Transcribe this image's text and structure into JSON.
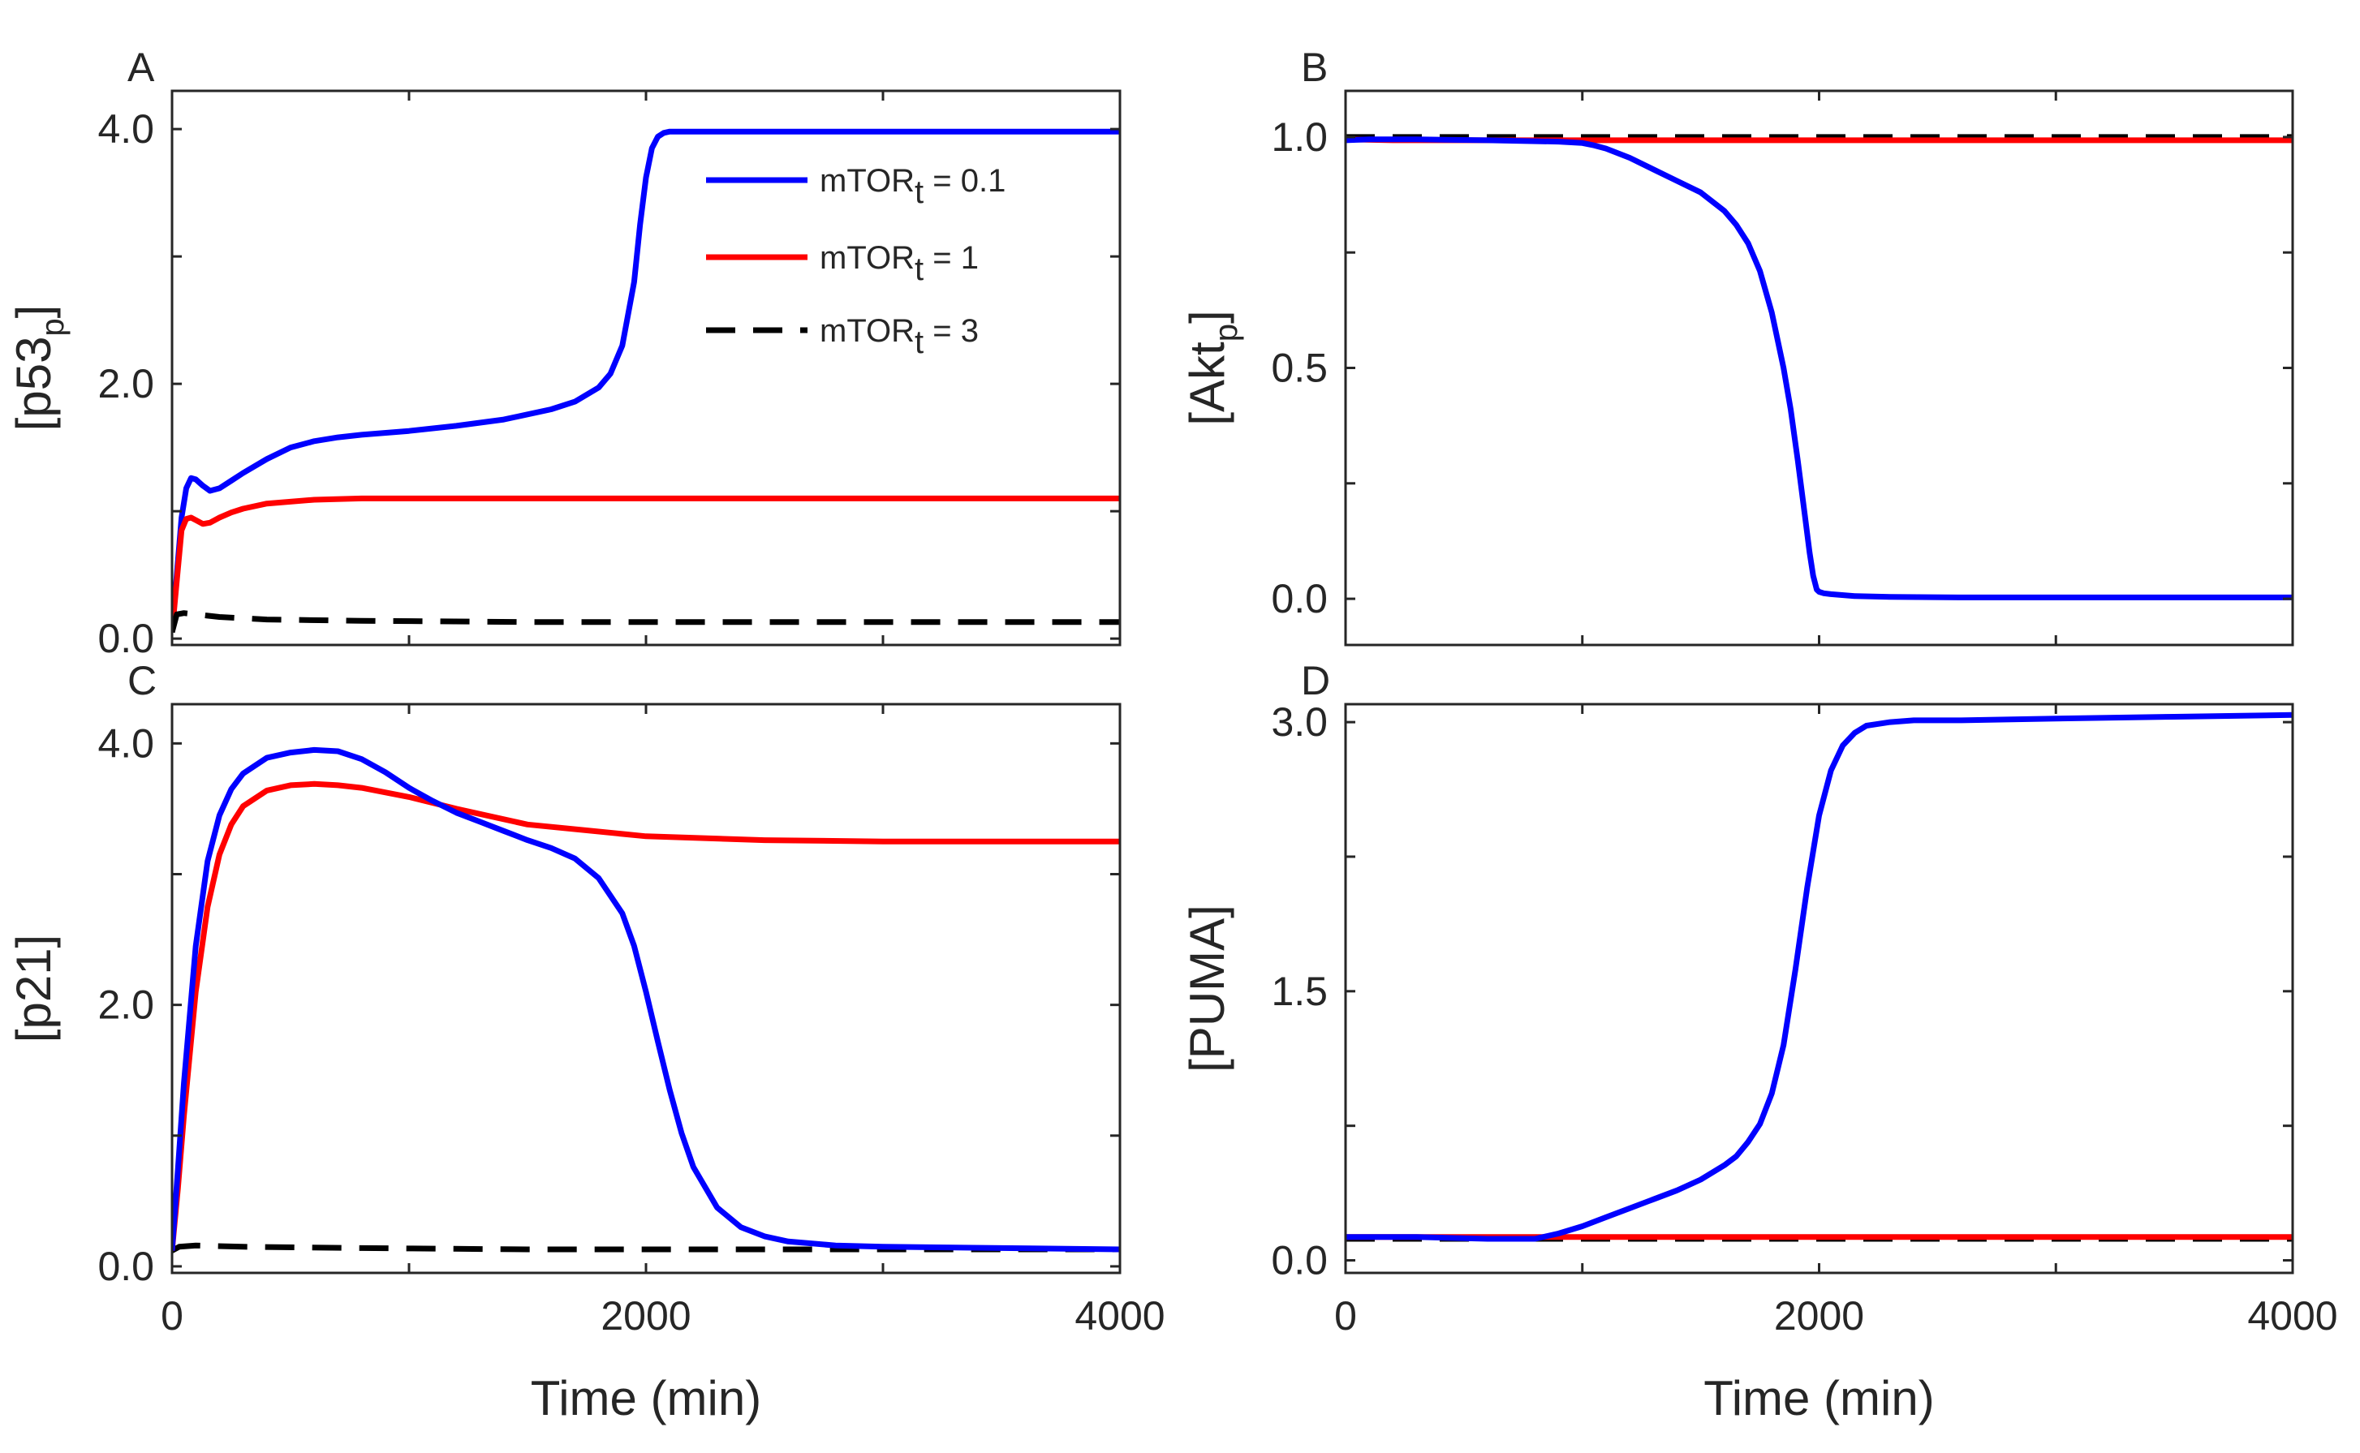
{
  "chart_data": [
    {
      "panel": "A",
      "type": "line",
      "xlabel": "Time (min)",
      "ylabel": "[p53",
      "ylabel_sub": "p",
      "ylabel_close": "]",
      "xlim": [
        0,
        4000
      ],
      "ylim": [
        -0.05,
        4.3
      ],
      "xticks": [
        0,
        2000,
        4000
      ],
      "xticklabels": [
        "",
        "",
        ""
      ],
      "yticks": [
        0,
        2,
        4
      ],
      "yticklabels": [
        "0.0",
        "2.0",
        "4.0"
      ],
      "minor_yticks": [
        1,
        3
      ],
      "minor_xticks": [
        1000,
        3000
      ],
      "legend": {
        "location": "top-right",
        "entries": [
          {
            "prefix": "mTOR",
            "sub": "t",
            "suffix": " = 0.1"
          },
          {
            "prefix": "mTOR",
            "sub": "t",
            "suffix": " = 1"
          },
          {
            "prefix": "mTOR",
            "sub": "t",
            "suffix": " = 3"
          }
        ]
      },
      "series": [
        {
          "name": "mTORt = 0.1",
          "color": "#0000ff",
          "dashed": false,
          "x": [
            0,
            20,
            40,
            60,
            80,
            100,
            130,
            160,
            200,
            250,
            300,
            400,
            500,
            600,
            700,
            800,
            1000,
            1200,
            1400,
            1600,
            1700,
            1800,
            1850,
            1900,
            1950,
            1975,
            2000,
            2025,
            2050,
            2075,
            2100,
            2150,
            2200,
            2400,
            2600,
            3000,
            3500,
            4000
          ],
          "y": [
            0.05,
            0.5,
            0.95,
            1.18,
            1.26,
            1.25,
            1.2,
            1.16,
            1.18,
            1.24,
            1.3,
            1.41,
            1.5,
            1.55,
            1.58,
            1.6,
            1.63,
            1.67,
            1.72,
            1.8,
            1.86,
            1.97,
            2.08,
            2.3,
            2.8,
            3.25,
            3.62,
            3.85,
            3.94,
            3.97,
            3.98,
            3.98,
            3.98,
            3.98,
            3.98,
            3.98,
            3.98,
            3.98
          ]
        },
        {
          "name": "mTORt = 1",
          "color": "#ff0000",
          "dashed": false,
          "x": [
            0,
            20,
            40,
            60,
            80,
            100,
            130,
            160,
            200,
            250,
            300,
            400,
            600,
            800,
            1000,
            1500,
            2000,
            3000,
            4000
          ],
          "y": [
            0.05,
            0.45,
            0.85,
            0.94,
            0.95,
            0.93,
            0.9,
            0.91,
            0.95,
            0.99,
            1.02,
            1.06,
            1.09,
            1.1,
            1.1,
            1.1,
            1.1,
            1.1,
            1.1
          ]
        },
        {
          "name": "mTORt = 3",
          "color": "#000000",
          "dashed": true,
          "x": [
            0,
            20,
            50,
            100,
            200,
            400,
            800,
            1500,
            2500,
            4000
          ],
          "y": [
            0.05,
            0.19,
            0.2,
            0.19,
            0.17,
            0.15,
            0.14,
            0.13,
            0.13,
            0.13
          ]
        }
      ]
    },
    {
      "panel": "B",
      "type": "line",
      "xlabel": "Time (min)",
      "ylabel": "[Akt",
      "ylabel_sub": "p",
      "ylabel_close": "]",
      "xlim": [
        0,
        4000
      ],
      "ylim": [
        -0.1,
        1.1
      ],
      "xticks": [
        0,
        2000,
        4000
      ],
      "xticklabels": [
        "",
        "",
        ""
      ],
      "yticks": [
        0,
        0.5,
        1
      ],
      "yticklabels": [
        "0.0",
        "0.5",
        "1.0"
      ],
      "minor_yticks": [
        0.25,
        0.75
      ],
      "minor_xticks": [
        1000,
        3000
      ],
      "series": [
        {
          "name": "mTORt = 3",
          "color": "#000000",
          "dashed": true,
          "x": [
            0,
            4000
          ],
          "y": [
            1.0,
            1.0
          ]
        },
        {
          "name": "mTORt = 1",
          "color": "#ff0000",
          "dashed": false,
          "x": [
            0,
            200,
            500,
            1000,
            2000,
            3000,
            4000
          ],
          "y": [
            0.995,
            0.993,
            0.993,
            0.993,
            0.993,
            0.993,
            0.993
          ]
        },
        {
          "name": "mTORt = 0.1",
          "color": "#0000ff",
          "dashed": false,
          "x": [
            0,
            100,
            300,
            600,
            900,
            1000,
            1050,
            1100,
            1200,
            1300,
            1400,
            1500,
            1600,
            1650,
            1700,
            1750,
            1800,
            1850,
            1880,
            1910,
            1940,
            1960,
            1975,
            1990,
            2000,
            2020,
            2050,
            2150,
            2300,
            2600,
            3000,
            4000
          ],
          "y": [
            0.993,
            0.995,
            0.995,
            0.993,
            0.99,
            0.987,
            0.982,
            0.975,
            0.955,
            0.93,
            0.905,
            0.88,
            0.84,
            0.81,
            0.77,
            0.71,
            0.62,
            0.5,
            0.41,
            0.3,
            0.18,
            0.1,
            0.05,
            0.02,
            0.015,
            0.012,
            0.01,
            0.006,
            0.004,
            0.003,
            0.003,
            0.003
          ]
        }
      ]
    },
    {
      "panel": "C",
      "type": "line",
      "xlabel": "Time (min)",
      "ylabel": "[p21]",
      "ylabel_sub": "",
      "ylabel_close": "",
      "xlim": [
        0,
        4000
      ],
      "ylim": [
        -0.05,
        4.3
      ],
      "xticks": [
        0,
        2000,
        4000
      ],
      "xticklabels": [
        "0",
        "2000",
        "4000"
      ],
      "yticks": [
        0,
        2,
        4
      ],
      "yticklabels": [
        "0.0",
        "2.0",
        "4.0"
      ],
      "minor_yticks": [
        1,
        3
      ],
      "minor_xticks": [
        1000,
        3000
      ],
      "series": [
        {
          "name": "mTORt = 3",
          "color": "#000000",
          "dashed": true,
          "x": [
            0,
            30,
            100,
            300,
            800,
            1500,
            2500,
            3500,
            4000
          ],
          "y": [
            0.12,
            0.15,
            0.16,
            0.15,
            0.14,
            0.13,
            0.13,
            0.13,
            0.13
          ]
        },
        {
          "name": "mTORt = 1",
          "color": "#ff0000",
          "dashed": false,
          "x": [
            0,
            25,
            50,
            100,
            150,
            200,
            250,
            300,
            400,
            500,
            600,
            700,
            800,
            1000,
            1200,
            1500,
            2000,
            2500,
            3000,
            3500,
            4000
          ],
          "y": [
            0.12,
            0.6,
            1.15,
            2.1,
            2.75,
            3.15,
            3.38,
            3.52,
            3.64,
            3.68,
            3.69,
            3.68,
            3.66,
            3.59,
            3.5,
            3.38,
            3.29,
            3.26,
            3.25,
            3.25,
            3.25
          ]
        },
        {
          "name": "mTORt = 0.1",
          "color": "#0000ff",
          "dashed": false,
          "x": [
            0,
            25,
            50,
            100,
            150,
            200,
            250,
            300,
            400,
            500,
            600,
            700,
            800,
            900,
            1000,
            1100,
            1200,
            1300,
            1400,
            1500,
            1600,
            1700,
            1800,
            1900,
            1950,
            2000,
            2050,
            2100,
            2150,
            2200,
            2300,
            2400,
            2500,
            2600,
            2800,
            3000,
            3500,
            4000
          ],
          "y": [
            0.12,
            0.75,
            1.4,
            2.45,
            3.1,
            3.45,
            3.65,
            3.77,
            3.89,
            3.93,
            3.95,
            3.94,
            3.88,
            3.78,
            3.66,
            3.56,
            3.47,
            3.4,
            3.33,
            3.26,
            3.2,
            3.12,
            2.97,
            2.7,
            2.45,
            2.1,
            1.72,
            1.35,
            1.02,
            0.76,
            0.45,
            0.3,
            0.23,
            0.19,
            0.16,
            0.15,
            0.14,
            0.13
          ]
        }
      ]
    },
    {
      "panel": "D",
      "type": "line",
      "xlabel": "Time (min)",
      "ylabel": "[PUMA]",
      "ylabel_sub": "",
      "ylabel_close": "",
      "xlim": [
        0,
        4000
      ],
      "ylim": [
        -0.07,
        3.1
      ],
      "xticks": [
        0,
        2000,
        4000
      ],
      "xticklabels": [
        "0",
        "2000",
        "4000"
      ],
      "yticks": [
        0,
        1.5,
        3
      ],
      "yticklabels": [
        "0.0",
        "1.5",
        "3.0"
      ],
      "minor_yticks": [
        0.75,
        2.25
      ],
      "minor_xticks": [
        1000,
        3000
      ],
      "series": [
        {
          "name": "mTORt = 3",
          "color": "#000000",
          "dashed": true,
          "x": [
            0,
            4000
          ],
          "y": [
            0.12,
            0.12
          ]
        },
        {
          "name": "mTORt = 1",
          "color": "#ff0000",
          "dashed": false,
          "x": [
            0,
            500,
            1000,
            2000,
            3000,
            4000
          ],
          "y": [
            0.13,
            0.13,
            0.13,
            0.13,
            0.13,
            0.13
          ]
        },
        {
          "name": "mTORt = 0.1",
          "color": "#0000ff",
          "dashed": false,
          "x": [
            0,
            300,
            600,
            800,
            900,
            1000,
            1100,
            1200,
            1300,
            1400,
            1500,
            1600,
            1650,
            1700,
            1750,
            1800,
            1850,
            1900,
            1950,
            2000,
            2050,
            2100,
            2150,
            2200,
            2300,
            2400,
            2600,
            3000,
            3500,
            4000
          ],
          "y": [
            0.13,
            0.13,
            0.12,
            0.12,
            0.15,
            0.19,
            0.24,
            0.29,
            0.34,
            0.39,
            0.45,
            0.53,
            0.58,
            0.66,
            0.76,
            0.93,
            1.2,
            1.62,
            2.08,
            2.48,
            2.73,
            2.87,
            2.94,
            2.98,
            3.0,
            3.01,
            3.01,
            3.02,
            3.03,
            3.04
          ]
        }
      ]
    }
  ]
}
